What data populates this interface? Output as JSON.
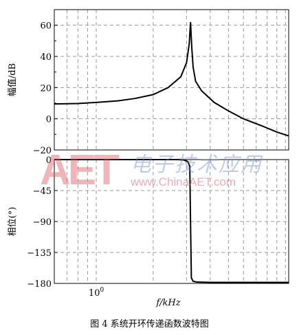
{
  "caption": "图 4   系统开环传递函数波特图",
  "watermark": {
    "logo": "AET",
    "chinese": "电子技术应用",
    "url": "www.ChinaAET.com"
  },
  "chart_data": [
    {
      "type": "line",
      "title": "",
      "xlabel": "",
      "ylabel": "幅值/dB",
      "xscale": "log",
      "ylim": [
        -20,
        70
      ],
      "yticks": [
        -20,
        0,
        20,
        40,
        60
      ],
      "ytick_labels": [
        "−20",
        "0",
        "20",
        "40",
        "60"
      ],
      "grid": true,
      "series": [
        {
          "x": [
            0.6,
            0.8,
            1.0,
            1.3,
            1.6,
            2.0,
            2.4,
            2.8,
            3.0,
            3.1,
            3.15,
            3.2,
            3.25,
            3.35,
            3.6,
            4.2,
            5.0,
            6.0,
            7.5,
            9.0,
            10.4
          ],
          "values": [
            9.5,
            9.8,
            10.5,
            11.5,
            13.0,
            15.5,
            20.0,
            27.0,
            36.0,
            48.0,
            62.0,
            45.0,
            33.0,
            24.0,
            18.0,
            10.5,
            5.0,
            0.0,
            -4.5,
            -8.5,
            -11.0
          ]
        }
      ]
    },
    {
      "type": "line",
      "title": "",
      "xlabel": "f/kHz",
      "ylabel": "相位(°)",
      "xscale": "log",
      "ylim": [
        -180,
        0
      ],
      "yticks": [
        -180,
        -135,
        -90,
        -45,
        0
      ],
      "ytick_labels": [
        "−180",
        "−135",
        "−90",
        "−45",
        "0"
      ],
      "xtick_labels": [
        "10⁰"
      ],
      "grid": true,
      "series": [
        {
          "x": [
            0.6,
            2.7,
            2.9,
            3.05,
            3.12,
            3.15,
            3.18,
            3.25,
            3.4,
            4.0,
            10.4
          ],
          "values": [
            0,
            0,
            -0.5,
            -3,
            -10,
            -90,
            -172,
            -177,
            -178,
            -178.5,
            -178.5
          ]
        }
      ]
    }
  ]
}
